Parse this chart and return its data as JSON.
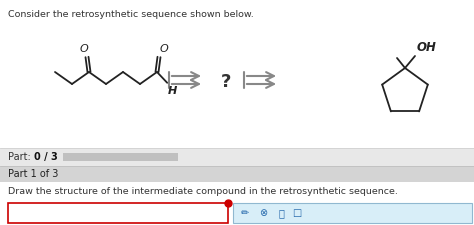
{
  "title_text": "Consider the retrosynthetic sequence shown below.",
  "part_label": "Part: ",
  "part_bold": "0 / 3",
  "part1_label": "Part 1 of 3",
  "draw_instruction": "Draw the structure of the intermediate compound in the retrosynthetic sequence.",
  "bg_color": "#ffffff",
  "part_bg": "#e8e8e8",
  "part1_bg": "#d4d4d4",
  "input_border_color": "#cc0000",
  "toolbar_bg": "#d8eef8",
  "toolbar_border": "#90b8d0",
  "question_mark": "?",
  "arrow_color": "#888888",
  "molecule_color": "#222222",
  "progress_color": "#c0c0c0",
  "figsize": [
    4.74,
    2.25
  ],
  "dpi": 100
}
